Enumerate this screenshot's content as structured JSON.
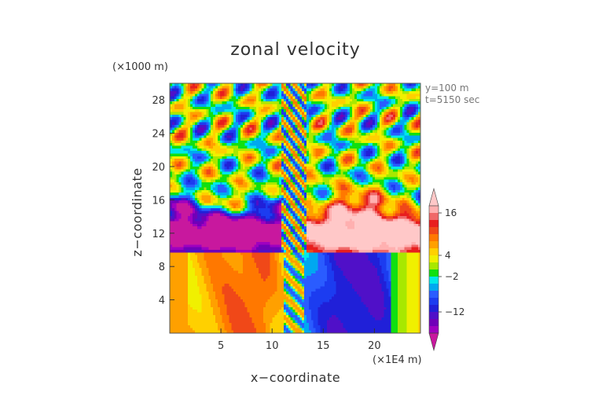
{
  "chart_data": {
    "type": "heatmap",
    "title": "zonal velocity",
    "xlabel": "x−coordinate",
    "ylabel": "z−coordinate",
    "x_unit": "(×1E4 m)",
    "y_unit": "(×1000 m)",
    "xlim": [
      0,
      24.5
    ],
    "ylim": [
      0,
      30
    ],
    "x_ticks": [
      5,
      10,
      15,
      20
    ],
    "y_ticks": [
      4,
      8,
      12,
      16,
      20,
      24,
      28
    ],
    "annotations": [
      "y=100 m",
      "t=5150 sec"
    ],
    "colorbar": {
      "tick_labels": [
        "16",
        "4",
        "−2",
        "−12"
      ],
      "tick_values": [
        16,
        4,
        -2,
        -12
      ],
      "levels": [
        -20,
        -18,
        -16,
        -14,
        -12,
        -10,
        -8,
        -6,
        -4,
        -2,
        0,
        2,
        4,
        6,
        8,
        10,
        12,
        14,
        16,
        18,
        20
      ],
      "colors": [
        "#c8189e",
        "#9f00c0",
        "#7000b8",
        "#5010c8",
        "#2020d8",
        "#1c3cf0",
        "#2a5cff",
        "#00a8f0",
        "#00e8e8",
        "#10e010",
        "#a8e800",
        "#f0f000",
        "#ffd000",
        "#ffa000",
        "#ff7800",
        "#f04818",
        "#e81e1e",
        "#f06868",
        "#ffb0b0",
        "#ffc8c8"
      ]
    }
  }
}
